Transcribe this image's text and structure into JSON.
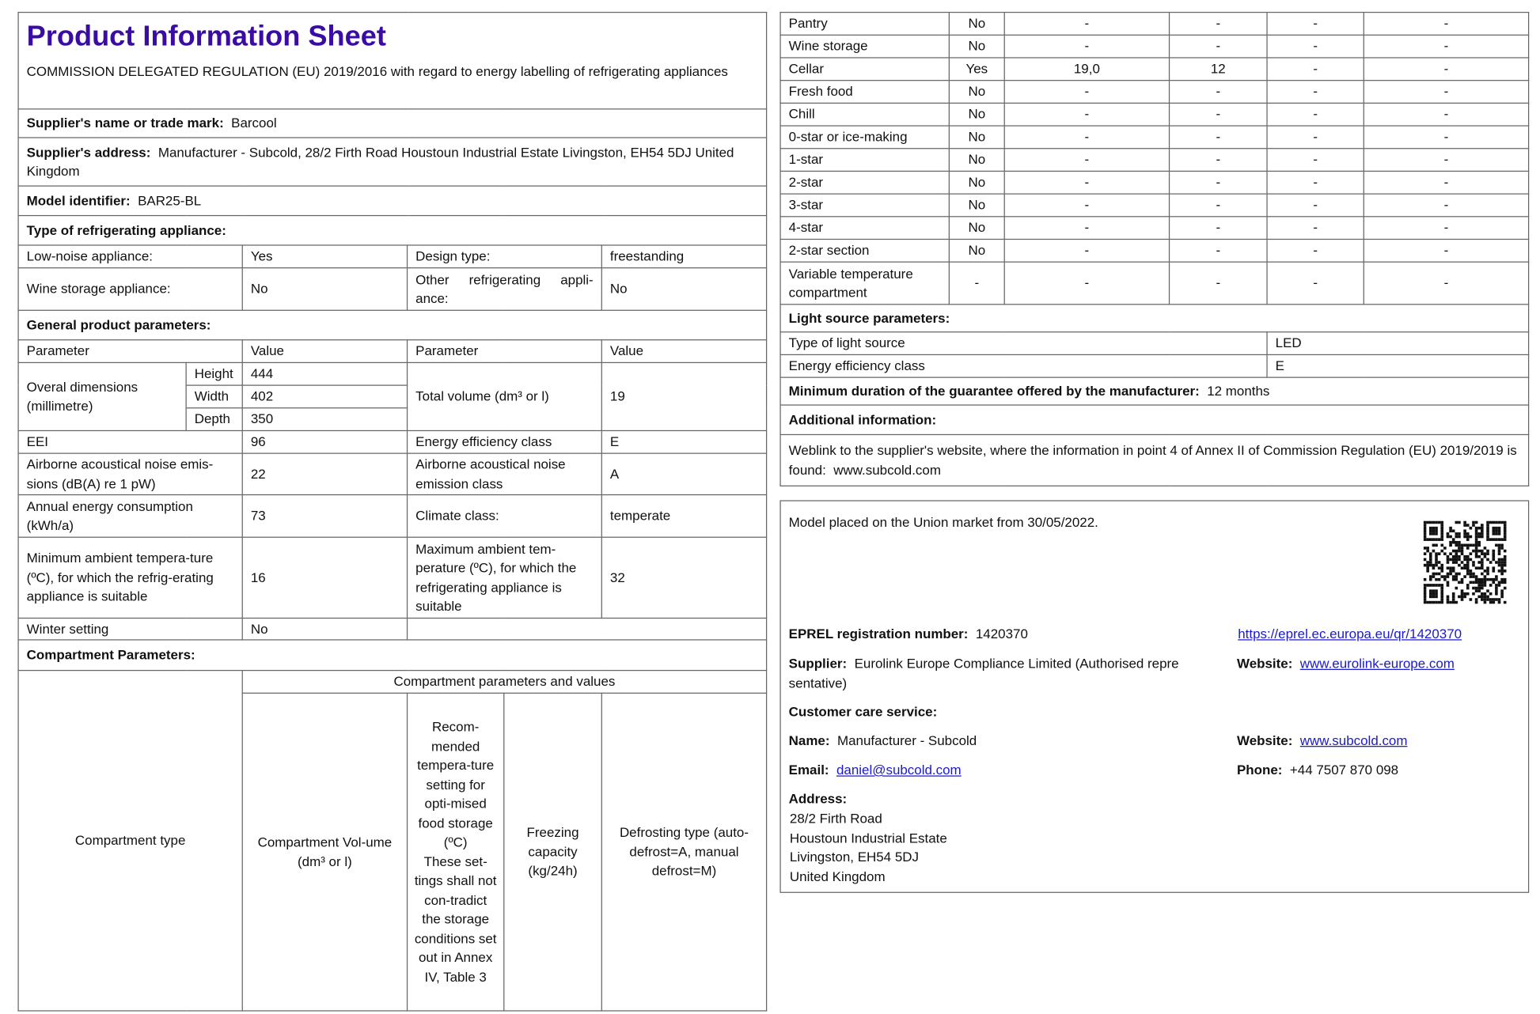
{
  "header": {
    "title": "Product Information Sheet",
    "regulation": "COMMISSION DELEGATED REGULATION (EU) 2019/2016 with regard to energy labelling of refrigerating appliances"
  },
  "supplier": {
    "name_label": "Supplier's name or trade mark:",
    "name": "Barcool",
    "address_label": "Supplier's address:",
    "address": "Manufacturer - Subcold, 28/2 Firth Road Houstoun Industrial Estate Livingston, EH54 5DJ United Kingdom"
  },
  "model": {
    "label": "Model identifier:",
    "value": "BAR25-BL"
  },
  "type": {
    "heading": "Type of refrigerating appliance:",
    "low_noise_label": "Low-noise appliance:",
    "low_noise": "Yes",
    "design_label": "Design type:",
    "design": "freestanding",
    "wine_label": "Wine storage appliance:",
    "wine": "No",
    "other_label": "Other refrigerating appli-ance:",
    "other": "No"
  },
  "general": {
    "heading": "General product parameters:",
    "param_h": "Parameter",
    "value_h": "Value",
    "dims_label": "Overal dimensions (millimetre)",
    "height_label": "Height",
    "height": "444",
    "width_label": "Width",
    "width": "402",
    "depth_label": "Depth",
    "depth": "350",
    "volume_label": "Total volume (dm³ or l)",
    "volume": "19",
    "eei_label": "EEI",
    "eei": "96",
    "eec_label": "Energy efficiency class",
    "eec": "E",
    "noise_label": "Airborne acoustical noise emis-sions (dB(A) re 1 pW)",
    "noise": "22",
    "noise_class_label": "Airborne acoustical noise emission class",
    "noise_class": "A",
    "aec_label": "Annual energy consumption (kWh/a)",
    "aec": "73",
    "climate_label": "Climate class:",
    "climate": "temperate",
    "min_label": "Minimum ambient tempera-ture (ºC), for which the refrig-erating appliance is suitable",
    "min": "16",
    "max_label": "Maximum ambient tem-perature (ºC), for which the refrigerating appliance is suitable",
    "max": "32",
    "winter_label": "Winter setting",
    "winter": "No"
  },
  "compartments": {
    "heading": "Compartment Parameters:",
    "type_h": "Compartment type",
    "group_h": "Compartment parameters and values",
    "volume_h": "Compartment Vol-ume (dm³ or l)",
    "temp_h": "Recom-mended tempera-ture setting for opti-mised food storage (ºC)",
    "temp_note": "These set-tings shall not con-tradict the storage conditions set out in Annex IV, Table 3",
    "freeze_h": "Freezing capacity (kg/24h)",
    "defrost_h": "Defrosting type (auto-defrost=A, manual defrost=M)",
    "rows": [
      [
        "Pantry",
        "No",
        "-",
        "-",
        "-",
        "-"
      ],
      [
        "Wine storage",
        "No",
        "-",
        "-",
        "-",
        "-"
      ],
      [
        "Cellar",
        "Yes",
        "19,0",
        "12",
        "-",
        "-"
      ],
      [
        "Fresh food",
        "No",
        "-",
        "-",
        "-",
        "-"
      ],
      [
        "Chill",
        "No",
        "-",
        "-",
        "-",
        "-"
      ],
      [
        "0-star or ice-making",
        "No",
        "-",
        "-",
        "-",
        "-"
      ],
      [
        "1-star",
        "No",
        "-",
        "-",
        "-",
        "-"
      ],
      [
        "2-star",
        "No",
        "-",
        "-",
        "-",
        "-"
      ],
      [
        "3-star",
        "No",
        "-",
        "-",
        "-",
        "-"
      ],
      [
        "4-star",
        "No",
        "-",
        "-",
        "-",
        "-"
      ],
      [
        "2-star section",
        "No",
        "-",
        "-",
        "-",
        "-"
      ],
      [
        "Variable temperature compartment",
        "-",
        "-",
        "-",
        "-",
        "-"
      ]
    ]
  },
  "light": {
    "heading": "Light source parameters:",
    "type_label": "Type of light source",
    "type": "LED",
    "class_label": "Energy efficiency class",
    "class": "E"
  },
  "guarantee": {
    "label": "Minimum duration of the guarantee offered by the manufacturer:",
    "value": "12 months"
  },
  "additional": {
    "heading": "Additional information:",
    "text": "Weblink to the supplier's website, where the information in point 4 of Annex II of Commission Regulation (EU) 2019/2019 is found:",
    "link": "www.subcold.com"
  },
  "info": {
    "placed": "Model placed on the Union market from 30/05/2022.",
    "eprel_label": "EPREL registration number:",
    "eprel": "1420370",
    "eprel_url": "https://eprel.ec.europa.eu/qr/1420370",
    "supplier_label": "Supplier:",
    "supplier": "Eurolink Europe Compliance Limited (Authorised repre sentative)",
    "website_label": "Website:",
    "supplier_site": "www.eurolink-europe.com",
    "care_heading": "Customer care service:",
    "name_label": "Name:",
    "name": "Manufacturer - Subcold",
    "care_site": "www.subcold.com",
    "email_label": "Email:",
    "email": "daniel@subcold.com",
    "phone_label": "Phone:",
    "phone": "+44 7507 870 098",
    "address_label": "Address:",
    "address": [
      "28/2 Firth Road",
      "Houstoun Industrial Estate",
      "Livingston, EH54 5DJ",
      "United Kingdom"
    ],
    "qr_icon": "qr-code-icon"
  },
  "colors": {
    "title": "#3a0ca3",
    "link": "#1a1acc"
  }
}
